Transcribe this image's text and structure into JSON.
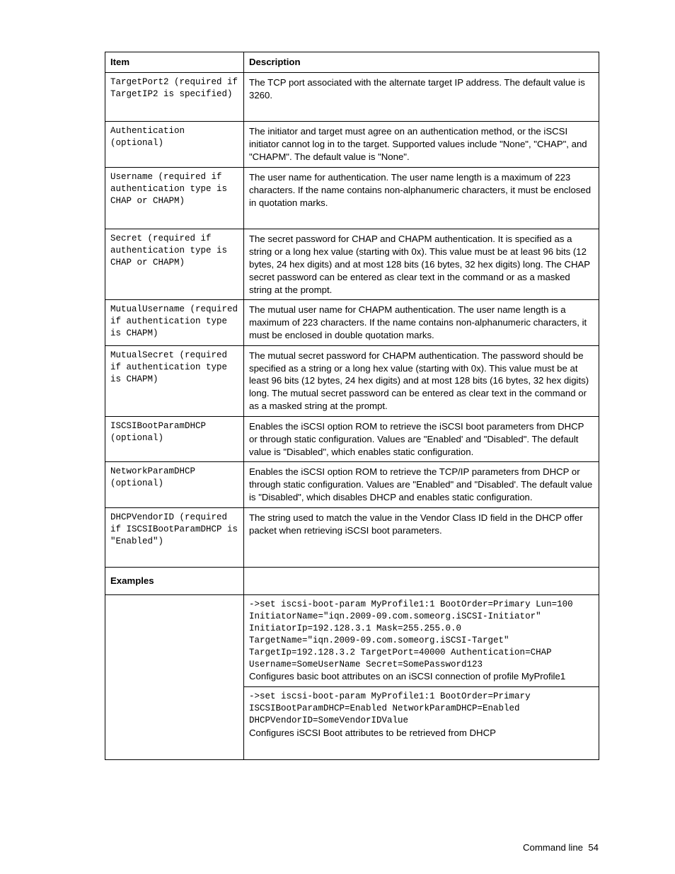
{
  "header": {
    "item": "Item",
    "description": "Description"
  },
  "rows": [
    {
      "item": "TargetPort2 (required if TargetIP2 is specified)",
      "desc": "The TCP port associated with the alternate target IP address. The default value is 3260.",
      "tall": true
    },
    {
      "item": "Authentication (optional)",
      "desc": "The initiator and target must agree on an authentication method, or the iSCSI initiator cannot log in to the target. Supported values include \"None\", \"CHAP\", and \"CHAPM\". The default value is \"None\"."
    },
    {
      "item": "Username (required if authentication type is CHAP or CHAPM)",
      "desc": "The user name for authentication. The user name length is a maximum of 223 characters. If the name contains non-alphanumeric characters, it must be enclosed in quotation marks.",
      "tall": true
    },
    {
      "item": "Secret (required if authentication type is CHAP or CHAPM)",
      "desc": "The secret password for CHAP and CHAPM authentication. It is specified as a string or a long hex value (starting with 0x). This value must be at least 96 bits (12 bytes, 24 hex digits) and at most 128 bits (16 bytes, 32 hex digits) long. The CHAP secret password can be entered as clear text in the command or as a masked string at the prompt."
    },
    {
      "item": "MutualUsername (required if authentication type is CHAPM)",
      "desc": "The mutual user name for CHAPM authentication. The user name length is a maximum of 223 characters. If the name contains non-alphanumeric characters, it must be enclosed in double quotation marks."
    },
    {
      "item": "MutualSecret (required if authentication type is CHAPM)",
      "desc": "The mutual secret password for CHAPM authentication. The password should be specified as a string or a long hex value (starting with 0x). This value must be at least 96 bits (12 bytes, 24 hex digits) and at most 128 bits (16 bytes, 32 hex digits) long. The mutual secret password can be entered as clear text in the command or as a masked string at the prompt."
    },
    {
      "item": "ISCSIBootParamDHCP (optional)",
      "desc": "Enables the iSCSI option ROM to retrieve the iSCSI boot parameters from DHCP or through static configuration. Values are \"Enabled' and \"Disabled\". The default value is \"Disabled\", which enables static configuration."
    },
    {
      "item": "NetworkParamDHCP (optional)",
      "desc": "Enables the iSCSI option ROM to retrieve the TCP/IP parameters from DHCP or through static configuration. Values are \"Enabled\" and \"Disabled'. The default value is \"Disabled\", which disables DHCP and enables static configuration."
    },
    {
      "item": "DHCPVendorID (required if ISCSIBootParamDHCP is \"Enabled\")",
      "desc": "The string used to match the value in the Vendor Class ID field in the DHCP offer packet when retrieving iSCSI boot parameters.",
      "tall": true
    }
  ],
  "examples_header": "Examples",
  "examples": [
    {
      "cmd": "->set iscsi-boot-param MyProfile1:1 BootOrder=Primary Lun=100\nInitiatorName=\"iqn.2009-09.com.someorg.iSCSI-Initiator\"\nInitiatorIp=192.128.3.1 Mask=255.255.0.0\nTargetName=\"iqn.2009-09.com.someorg.iSCSI-Target\"\nTargetIp=192.128.3.2 TargetPort=40000 Authentication=CHAP\nUsername=SomeUserName Secret=SomePassword123",
      "caption": "Configures basic boot attributes on an iSCSI connection of profile MyProfile1"
    },
    {
      "cmd": "->set iscsi-boot-param MyProfile1:1 BootOrder=Primary\nISCSIBootParamDHCP=Enabled NetworkParamDHCP=Enabled\nDHCPVendorID=SomeVendorIDValue",
      "caption": "Configures iSCSI Boot attributes to be retrieved from DHCP",
      "tall": true
    }
  ],
  "footer": {
    "label": "Command line",
    "page": "54"
  }
}
